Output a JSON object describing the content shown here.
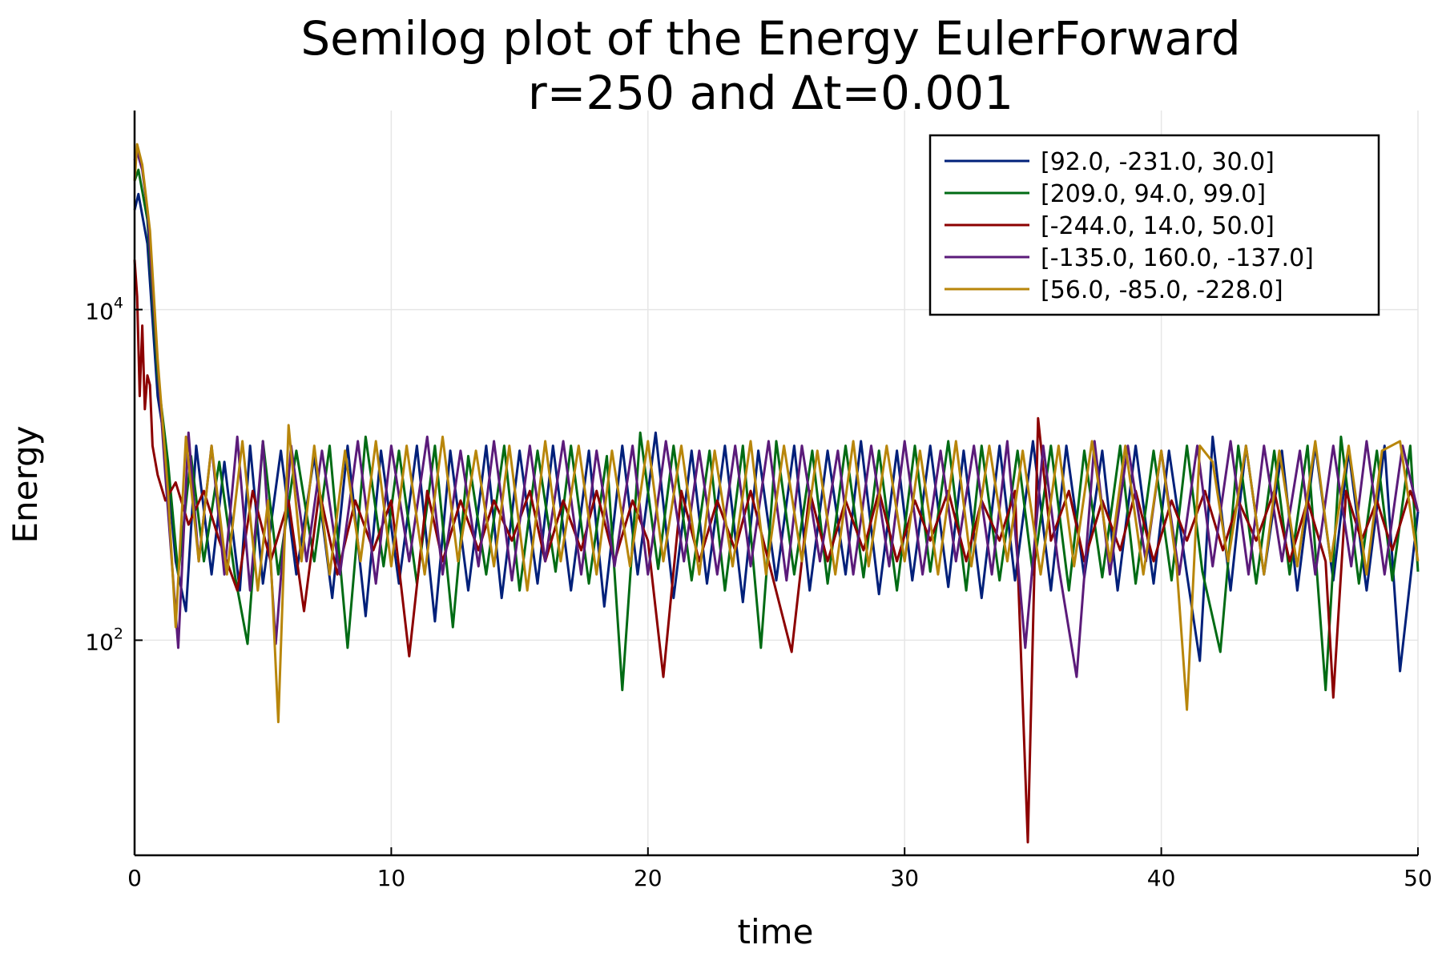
{
  "chart_data": {
    "type": "line",
    "title": "Semilog plot of the Energy EulerForward",
    "subtitle": "r=250 and Δt=0.001",
    "xlabel": "time",
    "ylabel": "Energy",
    "xlim": [
      0,
      50
    ],
    "ylim": [
      5,
      160000
    ],
    "yscale": "log",
    "xticks": [
      0,
      10,
      20,
      30,
      40,
      50
    ],
    "yticks": [
      {
        "value": 100,
        "base": "10",
        "exp": "2"
      },
      {
        "value": 10000,
        "base": "10",
        "exp": "4"
      }
    ],
    "grid": true,
    "legend": "top-right",
    "series": [
      {
        "name": "[92.0, -231.0, 30.0]",
        "color": "#00207a",
        "x": [
          0,
          0.15,
          0.5,
          0.9,
          1.2,
          1.6,
          2.0,
          2.4,
          3.0,
          3.5,
          4.1,
          4.5,
          5.0,
          5.7,
          6.3,
          7.0,
          7.7,
          8.3,
          9.0,
          9.6,
          10.3,
          11.0,
          11.7,
          12.3,
          13.0,
          13.7,
          14.3,
          15.0,
          15.7,
          16.3,
          17.0,
          17.7,
          18.3,
          19.0,
          19.6,
          20.3,
          21.0,
          21.7,
          22.3,
          23.0,
          23.7,
          24.3,
          25.0,
          25.7,
          26.3,
          27.0,
          27.7,
          28.3,
          29.0,
          29.7,
          30.3,
          31.0,
          31.7,
          32.3,
          33.0,
          33.7,
          34.3,
          35.0,
          35.7,
          36.3,
          37.0,
          37.7,
          38.3,
          39.0,
          39.7,
          40.3,
          41.0,
          41.5,
          42.0,
          42.7,
          43.3,
          44.0,
          44.7,
          45.3,
          46.0,
          46.7,
          47.3,
          48.0,
          48.7,
          49.3,
          50.0
        ],
        "y": [
          40000,
          50000,
          25000,
          3000,
          1500,
          300,
          150,
          1500,
          250,
          1200,
          200,
          1500,
          220,
          1400,
          250,
          1300,
          180,
          1500,
          140,
          1400,
          220,
          1500,
          130,
          1400,
          200,
          1500,
          180,
          1400,
          220,
          1500,
          200,
          1400,
          160,
          1500,
          250,
          1800,
          180,
          1400,
          220,
          1500,
          170,
          1400,
          230,
          1500,
          200,
          1400,
          250,
          1600,
          190,
          1400,
          230,
          1500,
          210,
          1400,
          180,
          1500,
          230,
          1600,
          200,
          1500,
          240,
          1400,
          200,
          1500,
          220,
          1400,
          250,
          75,
          1700,
          200,
          1500,
          250,
          1400,
          200,
          1500,
          230,
          1400,
          200,
          1500,
          65,
          600
        ]
      },
      {
        "name": "[209.0, 94.0, 99.0]",
        "color": "#006b14",
        "x": [
          0,
          0.15,
          0.5,
          0.9,
          1.3,
          1.7,
          2.2,
          2.7,
          3.3,
          3.9,
          4.4,
          5.0,
          5.6,
          6.3,
          7.0,
          7.6,
          8.3,
          9.0,
          9.7,
          10.3,
          11.0,
          11.7,
          12.4,
          13.0,
          13.7,
          14.4,
          15.0,
          15.7,
          16.4,
          17.0,
          17.7,
          18.4,
          19.0,
          19.7,
          20.4,
          21.0,
          21.7,
          22.4,
          23.0,
          23.7,
          24.4,
          25.0,
          25.7,
          26.4,
          27.0,
          27.7,
          28.4,
          29.0,
          29.7,
          30.4,
          31.0,
          31.7,
          32.4,
          33.0,
          33.7,
          34.4,
          35.0,
          35.7,
          36.4,
          37.0,
          37.7,
          38.4,
          39.0,
          39.7,
          40.4,
          41.0,
          41.6,
          42.3,
          43.0,
          43.7,
          44.4,
          45.0,
          45.7,
          46.4,
          47.0,
          47.7,
          48.4,
          49.0,
          49.7,
          50.0
        ],
        "y": [
          60000,
          70000,
          35000,
          4000,
          1200,
          250,
          1300,
          300,
          1200,
          250,
          95,
          1600,
          250,
          1400,
          300,
          1500,
          90,
          1700,
          280,
          1400,
          220,
          1500,
          120,
          1300,
          250,
          1500,
          200,
          1400,
          260,
          1500,
          220,
          1300,
          50,
          1800,
          270,
          1500,
          230,
          1400,
          200,
          1500,
          90,
          1600,
          250,
          1400,
          220,
          1500,
          240,
          1400,
          200,
          1500,
          260,
          1600,
          200,
          1500,
          230,
          1400,
          250,
          1500,
          200,
          1400,
          240,
          1500,
          220,
          1400,
          230,
          1500,
          260,
          85,
          1500,
          220,
          1400,
          250,
          1500,
          50,
          1700,
          220,
          1400,
          230,
          1500,
          260
        ]
      },
      {
        "name": "[-244.0, 14.0, 50.0]",
        "color": "#8c0000",
        "x": [
          0,
          0.1,
          0.2,
          0.3,
          0.4,
          0.5,
          0.6,
          0.7,
          0.9,
          1.2,
          1.6,
          2.1,
          2.7,
          3.3,
          4.0,
          4.6,
          5.3,
          6.0,
          6.6,
          7.2,
          7.9,
          8.6,
          9.3,
          10.0,
          10.7,
          11.4,
          12.0,
          12.7,
          13.4,
          14.0,
          14.7,
          15.4,
          16.0,
          16.7,
          17.4,
          18.0,
          18.7,
          19.4,
          20.0,
          20.6,
          21.3,
          22.0,
          22.7,
          23.4,
          24.0,
          24.7,
          25.6,
          26.3,
          27.0,
          27.7,
          28.4,
          29.0,
          29.7,
          30.4,
          31.0,
          31.7,
          32.4,
          33.0,
          33.7,
          34.3,
          34.8,
          35.2,
          35.7,
          36.4,
          37.0,
          37.7,
          38.4,
          39.0,
          39.7,
          40.4,
          41.0,
          41.7,
          42.4,
          43.0,
          43.7,
          44.4,
          45.0,
          45.7,
          46.4,
          46.7,
          47.2,
          47.8,
          48.4,
          49.0,
          49.7,
          50.0
        ],
        "y": [
          20000,
          12000,
          3000,
          8000,
          2500,
          4000,
          3500,
          1500,
          1000,
          700,
          900,
          500,
          800,
          400,
          200,
          800,
          300,
          700,
          150,
          800,
          250,
          700,
          350,
          700,
          80,
          800,
          300,
          700,
          350,
          700,
          400,
          800,
          300,
          700,
          350,
          800,
          300,
          700,
          400,
          60,
          800,
          300,
          700,
          350,
          800,
          300,
          85,
          800,
          300,
          700,
          350,
          800,
          300,
          700,
          400,
          800,
          300,
          700,
          400,
          800,
          6,
          2200,
          400,
          800,
          300,
          700,
          350,
          800,
          300,
          700,
          400,
          800,
          350,
          700,
          400,
          800,
          300,
          700,
          300,
          45,
          800,
          400,
          700,
          350,
          800,
          600
        ]
      },
      {
        "name": "[-135.0, 160.0, -137.0]",
        "color": "#5b1b7a",
        "x": [
          0,
          0.1,
          0.3,
          0.5,
          0.8,
          1.2,
          1.7,
          2.1,
          2.5,
          3.0,
          3.5,
          4.0,
          4.5,
          5.0,
          5.5,
          6.1,
          6.7,
          7.3,
          8.0,
          8.7,
          9.4,
          10.0,
          10.7,
          11.4,
          12.0,
          12.7,
          13.4,
          14.0,
          14.7,
          15.4,
          16.0,
          16.7,
          17.4,
          18.0,
          18.7,
          19.4,
          20.0,
          20.7,
          21.4,
          22.0,
          22.7,
          23.4,
          24.0,
          24.7,
          25.4,
          26.0,
          26.7,
          27.4,
          28.0,
          28.7,
          29.4,
          30.0,
          30.7,
          31.4,
          32.0,
          32.7,
          33.4,
          34.0,
          34.7,
          35.4,
          36.0,
          36.7,
          37.4,
          38.0,
          38.7,
          39.4,
          40.0,
          40.7,
          41.4,
          42.0,
          42.7,
          43.4,
          44.0,
          44.7,
          45.4,
          46.0,
          46.7,
          47.4,
          48.0,
          48.7,
          49.4,
          50.0
        ],
        "y": [
          80000,
          90000,
          70000,
          40000,
          8000,
          1000,
          90,
          1800,
          300,
          1500,
          250,
          1700,
          200,
          1600,
          95,
          1500,
          300,
          1400,
          250,
          1600,
          220,
          1500,
          300,
          1700,
          250,
          1400,
          280,
          1600,
          230,
          1500,
          300,
          1600,
          250,
          1400,
          280,
          1500,
          250,
          1600,
          300,
          1400,
          250,
          1500,
          280,
          1600,
          230,
          1500,
          300,
          1400,
          250,
          1500,
          280,
          1600,
          250,
          1400,
          300,
          1500,
          250,
          1600,
          90,
          1500,
          280,
          60,
          1600,
          250,
          1500,
          300,
          1400,
          250,
          1500,
          280,
          1600,
          250,
          1500,
          300,
          1400,
          250,
          1500,
          280,
          1600,
          250,
          1500,
          600
        ]
      },
      {
        "name": "[56.0, -85.0, -228.0]",
        "color": "#b8860b",
        "x": [
          0,
          0.1,
          0.3,
          0.6,
          0.9,
          1.3,
          1.6,
          2.0,
          2.5,
          3.0,
          3.6,
          4.2,
          4.8,
          5.2,
          5.6,
          6.0,
          6.5,
          7.0,
          7.6,
          8.2,
          8.8,
          9.4,
          10.0,
          10.6,
          11.3,
          12.0,
          12.6,
          13.3,
          14.0,
          14.6,
          15.3,
          16.0,
          16.6,
          17.3,
          18.0,
          18.6,
          19.3,
          20.0,
          20.6,
          21.3,
          22.0,
          22.6,
          23.3,
          24.0,
          24.6,
          25.3,
          26.0,
          26.6,
          27.3,
          28.0,
          28.6,
          29.3,
          30.0,
          30.6,
          31.3,
          32.0,
          32.6,
          33.3,
          34.0,
          34.6,
          35.3,
          36.0,
          36.6,
          37.3,
          38.0,
          38.6,
          39.3,
          40.0,
          40.6,
          41.0,
          41.5,
          42.0,
          42.6,
          43.3,
          44.0,
          44.6,
          45.3,
          46.0,
          46.6,
          47.3,
          48.0,
          48.6,
          49.3,
          50.0
        ],
        "y": [
          60000,
          100000,
          75000,
          30000,
          5000,
          800,
          120,
          1700,
          300,
          1500,
          250,
          1600,
          200,
          700,
          32,
          2000,
          300,
          1500,
          250,
          1400,
          300,
          1600,
          280,
          1500,
          250,
          1700,
          300,
          1400,
          280,
          1500,
          200,
          1600,
          300,
          1500,
          250,
          1400,
          280,
          1600,
          300,
          1500,
          250,
          1400,
          280,
          1600,
          250,
          1500,
          300,
          1400,
          250,
          1600,
          280,
          1500,
          300,
          1400,
          250,
          1600,
          280,
          1500,
          300,
          1400,
          250,
          1500,
          280,
          1600,
          300,
          1500,
          250,
          1400,
          280,
          38,
          1500,
          1200,
          300,
          1500,
          250,
          1400,
          280,
          1600,
          300,
          1500,
          250,
          1400,
          1600,
          300
        ]
      }
    ]
  }
}
